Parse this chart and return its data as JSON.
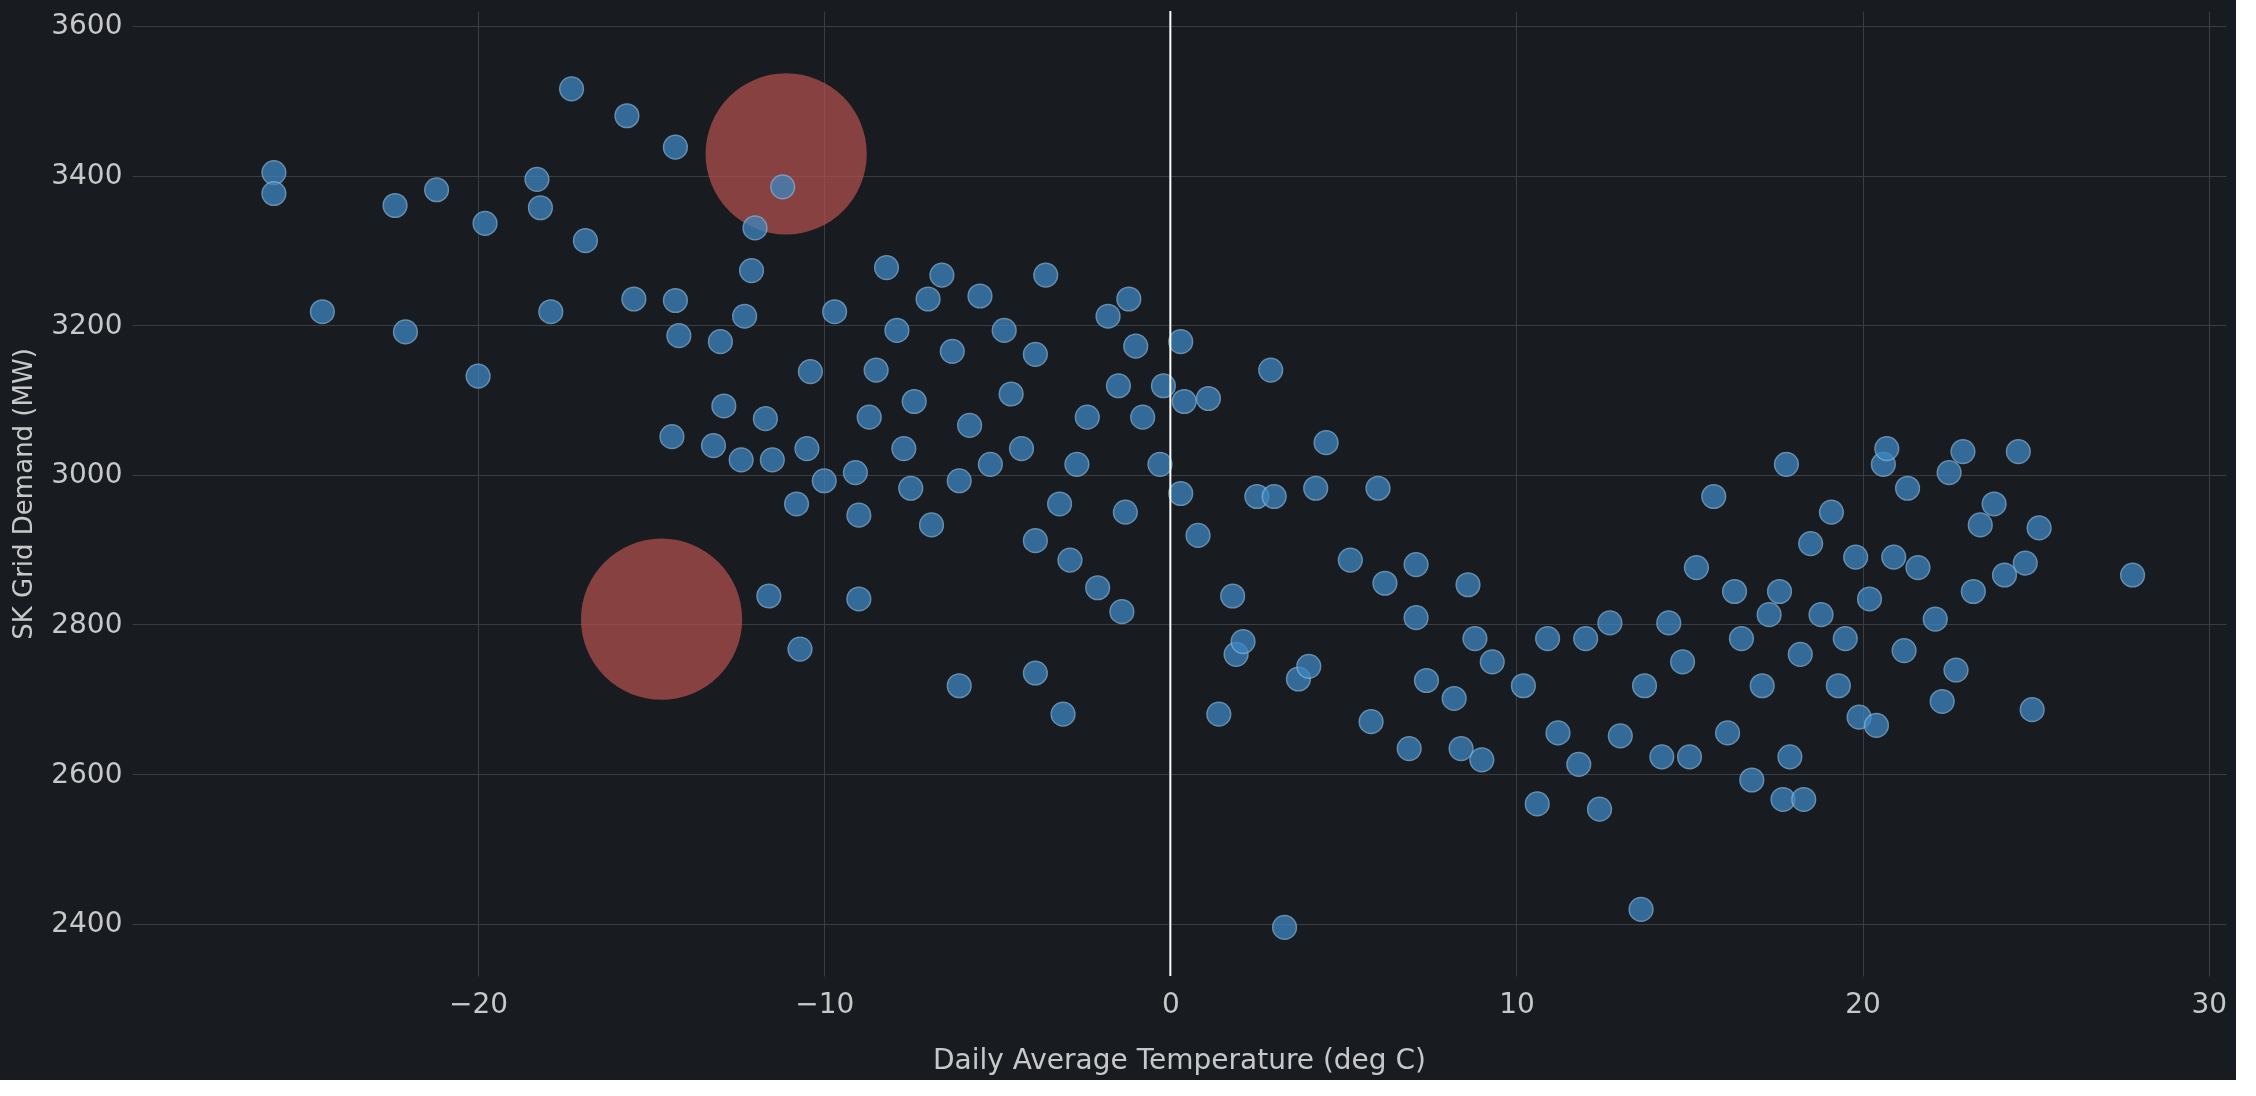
{
  "chart_data": {
    "type": "scatter",
    "xlabel": "Daily Average Temperature (deg C)",
    "ylabel": "SK Grid Demand (MW)",
    "xlim": [
      -30,
      30.5
    ],
    "ylim": [
      2330,
      3620
    ],
    "xticks": [
      -20,
      -10,
      0,
      10,
      20,
      30
    ],
    "yticks": [
      2400,
      2600,
      2800,
      3000,
      3200,
      3400,
      3600
    ],
    "grid": true,
    "marker": "circle",
    "ref_lines": [
      {
        "axis": "x",
        "value": 0,
        "color": "#ffffff"
      }
    ],
    "series": [
      {
        "type": "scatter",
        "color": "#3d85c0",
        "x": [
          -25.9,
          -25.9,
          -24.5,
          -22.4,
          -22.1,
          -21.2,
          -19.8,
          -20,
          -18.3,
          -18.2,
          -17.9,
          -17.3,
          -16.9,
          -15.7,
          -15.5,
          -14.3,
          -14.3,
          -14.2,
          -14.4,
          -13,
          -12.9,
          -13.2,
          -12.4,
          -12.3,
          -12.1,
          -12,
          -11.7,
          -11.5,
          -11.6,
          -11.2,
          -10.7,
          -10.8,
          -10.5,
          -10.4,
          -9.7,
          -10,
          -9,
          -9.1,
          -9,
          -8.7,
          -8.5,
          -8.2,
          -7.9,
          -7.7,
          -7.5,
          -7.4,
          -7,
          -6.9,
          -6.6,
          -6.3,
          -6.1,
          -6.1,
          -5.8,
          -5.5,
          -5.2,
          -4.8,
          -4.6,
          -4.3,
          -3.9,
          -3.9,
          -3.9,
          -3.6,
          -3.2,
          -3.1,
          -2.9,
          -2.7,
          -2.4,
          -2.1,
          -1.8,
          -1.5,
          -1.4,
          -1.3,
          -1.2,
          -1,
          -0.8,
          -0.3,
          -0.2,
          0.3,
          0.3,
          0.4,
          0.8,
          1.1,
          1.4,
          1.8,
          1.9,
          2.1,
          2.5,
          2.9,
          3,
          3.3,
          3.7,
          4,
          4.2,
          4.5,
          5.2,
          5.8,
          6,
          6.2,
          6.9,
          7.1,
          7.1,
          7.4,
          8.2,
          8.6,
          8.4,
          8.8,
          9,
          9.3,
          10.2,
          10.6,
          10.9,
          11.2,
          11.8,
          12,
          12.4,
          12.7,
          13,
          13.6,
          13.7,
          14.2,
          14.4,
          14.8,
          15,
          15.2,
          15.7,
          16.1,
          16.3,
          16.5,
          16.8,
          17.1,
          17.3,
          17.6,
          17.7,
          17.8,
          17.9,
          18.2,
          18.3,
          18.5,
          18.8,
          19.1,
          19.3,
          19.5,
          19.8,
          19.9,
          20.2,
          20.4,
          20.6,
          20.7,
          20.9,
          21.2,
          21.3,
          21.6,
          22.1,
          22.3,
          22.5,
          22.7,
          22.9,
          23.2,
          23.4,
          23.8,
          24.1,
          24.5,
          24.7,
          24.9,
          25.1,
          27.8
        ],
        "values": [
          3404,
          3376,
          3218,
          3360,
          3191,
          3381,
          3336,
          3132,
          3395,
          3357,
          3218,
          3516,
          3313,
          3480,
          3235,
          3438,
          3233,
          3186,
          3051,
          3178,
          3092,
          3039,
          3020,
          3212,
          3273,
          3330,
          3075,
          3020,
          2838,
          3385,
          2767,
          2961,
          3035,
          3138,
          3218,
          2992,
          2834,
          3003,
          2946,
          3077,
          3140,
          3277,
          3193,
          3035,
          2982,
          3098,
          3235,
          2933,
          3267,
          3165,
          2718,
          2992,
          3066,
          3239,
          3014,
          3193,
          3108,
          3035,
          3161,
          2912,
          2735,
          3267,
          2961,
          2680,
          2886,
          3014,
          3077,
          2849,
          3212,
          3119,
          2817,
          2950,
          3235,
          3172,
          3077,
          3014,
          3119,
          3178,
          2975,
          3098,
          2919,
          3102,
          2680,
          2838,
          2760,
          2777,
          2971,
          3140,
          2971,
          2395,
          2727,
          2744,
          2982,
          3043,
          2886,
          2670,
          2982,
          2855,
          2634,
          2880,
          2809,
          2725,
          2701,
          2853,
          2634,
          2781,
          2619,
          2750,
          2718,
          2560,
          2781,
          2655,
          2613,
          2781,
          2553,
          2802,
          2651,
          2419,
          2718,
          2623,
          2802,
          2750,
          2623,
          2876,
          2971,
          2655,
          2844,
          2781,
          2592,
          2718,
          2813,
          2844,
          2566,
          3014,
          2623,
          2760,
          2566,
          2908,
          2813,
          2950,
          2718,
          2781,
          2890,
          2676,
          2834,
          2665,
          3014,
          3035,
          2890,
          2765,
          2982,
          2876,
          2807,
          2697,
          3003,
          2739,
          3031,
          2844,
          2933,
          2961,
          2866,
          3031,
          2882,
          2686,
          2929,
          2866
        ]
      },
      {
        "type": "bubble",
        "color": "#b5514f",
        "x": [
          -11.1,
          -14.7
        ],
        "values": [
          3429,
          2807
        ],
        "sizes": [
          1,
          1
        ]
      }
    ]
  }
}
